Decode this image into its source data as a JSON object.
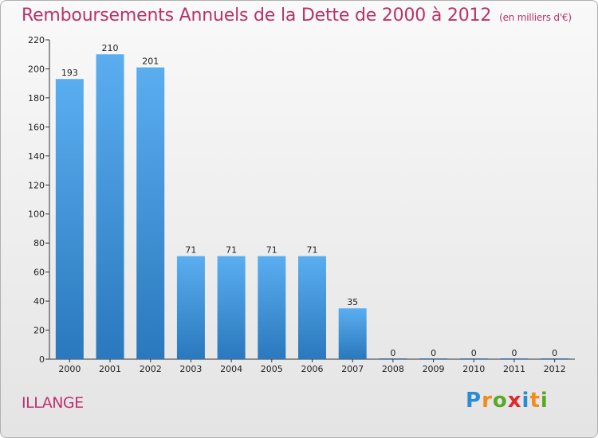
{
  "title": "Remboursements Annuels de la Dette de 2000 à 2012",
  "unit_note": "(en milliers d'€)",
  "commune": "ILLANGE",
  "logo": {
    "text": "Proxiti",
    "letters": [
      {
        "ch": "P",
        "color": "#2a8dd4"
      },
      {
        "ch": "r",
        "color": "#f28b1c"
      },
      {
        "ch": "o",
        "color": "#5aa829"
      },
      {
        "ch": "x",
        "color": "#e0282e"
      },
      {
        "ch": "i",
        "color": "#2a8dd4"
      },
      {
        "ch": "t",
        "color": "#f28b1c"
      },
      {
        "ch": "i",
        "color": "#5aa829"
      }
    ]
  },
  "colors": {
    "bar_top": "#5aaef0",
    "bar_bottom": "#2a78bd",
    "title": "#b8336a"
  },
  "chart_data": {
    "type": "bar",
    "categories": [
      "2000",
      "2001",
      "2002",
      "2003",
      "2004",
      "2005",
      "2006",
      "2007",
      "2008",
      "2009",
      "2010",
      "2011",
      "2012"
    ],
    "values": [
      193,
      210,
      201,
      71,
      71,
      71,
      71,
      35,
      0,
      0,
      0,
      0,
      0
    ],
    "ylim": [
      0,
      220
    ],
    "yticks": [
      0,
      20,
      40,
      60,
      80,
      100,
      120,
      140,
      160,
      180,
      200,
      220
    ],
    "grid": false
  }
}
